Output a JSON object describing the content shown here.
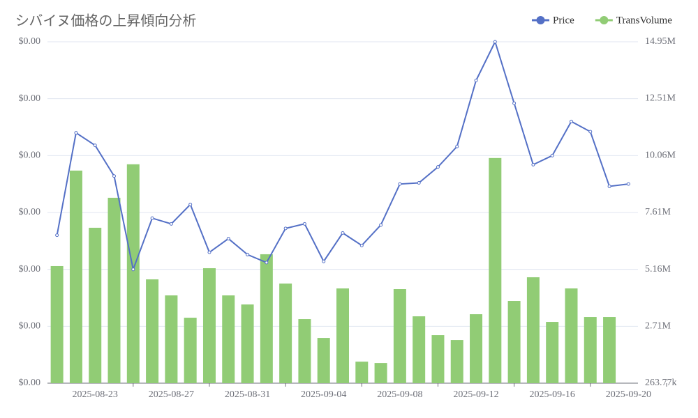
{
  "chart_data": {
    "type": "bar-line",
    "title": "シバイヌ価格の上昇傾向分析",
    "categories": [
      null,
      null,
      "2025-08-23",
      null,
      null,
      null,
      "2025-08-27",
      null,
      null,
      null,
      "2025-08-31",
      null,
      null,
      null,
      "2025-09-04",
      null,
      null,
      null,
      "2025-09-08",
      null,
      null,
      null,
      "2025-09-12",
      null,
      null,
      null,
      "2025-09-16",
      null,
      null,
      null,
      "2025-09-20"
    ],
    "series": [
      {
        "name": "Price",
        "type": "line",
        "color": "#5470c6",
        "axis": "y",
        "values": [
          1.18e-05,
          1.27e-05,
          1.259e-05,
          1.232e-05,
          1.15e-05,
          1.195e-05,
          1.19e-05,
          1.207e-05,
          1.165e-05,
          1.177e-05,
          1.163e-05,
          1.156e-05,
          1.186e-05,
          1.19e-05,
          1.157e-05,
          1.182e-05,
          1.171e-05,
          1.189e-05,
          1.225e-05,
          1.226e-05,
          1.24e-05,
          1.258e-05,
          1.316e-05,
          1.35e-05,
          1.296e-05,
          1.242e-05,
          1.25e-05,
          1.28e-05,
          1.271e-05,
          1.223e-05,
          1.225e-05
        ]
      },
      {
        "name": "TransVolume",
        "type": "bar",
        "color": "#91cc75",
        "axis": "y2",
        "values": [
          5300000,
          9410000,
          6950000,
          8240000,
          9680000,
          4730000,
          4040000,
          3080000,
          5210000,
          4040000,
          3650000,
          5810000,
          4550000,
          3020000,
          2210000,
          4340000,
          1190000,
          1130000,
          4310000,
          3140000,
          2330000,
          2120000,
          3230000,
          9950000,
          3800000,
          4820000,
          2900000,
          4340000,
          3110000,
          3110000,
          null
        ]
      }
    ],
    "ylim": [
      1.05e-05,
      1.35e-05
    ],
    "yticks": [
      {
        "value": 1.05e-05,
        "label": "$0.00"
      },
      {
        "value": 1.1e-05,
        "label": "$0.00"
      },
      {
        "value": 1.15e-05,
        "label": "$0.00"
      },
      {
        "value": 1.2e-05,
        "label": "$0.00"
      },
      {
        "value": 1.25e-05,
        "label": "$0.00"
      },
      {
        "value": 1.3e-05,
        "label": "$0.00"
      },
      {
        "value": 1.35e-05,
        "label": "$0.00"
      }
    ],
    "y2lim": [
      263770,
      14950000
    ],
    "y2ticks": [
      {
        "value": 263770,
        "label": "263.77k"
      },
      {
        "value": 2710000,
        "label": "2.71M"
      },
      {
        "value": 5160000,
        "label": "5.16M"
      },
      {
        "value": 7610000,
        "label": "7.61M"
      },
      {
        "value": 10060000,
        "label": "10.06M"
      },
      {
        "value": 12510000,
        "label": "12.51M"
      },
      {
        "value": 14950000,
        "label": "14.95M"
      }
    ],
    "grid": true,
    "legend": "top-right"
  }
}
